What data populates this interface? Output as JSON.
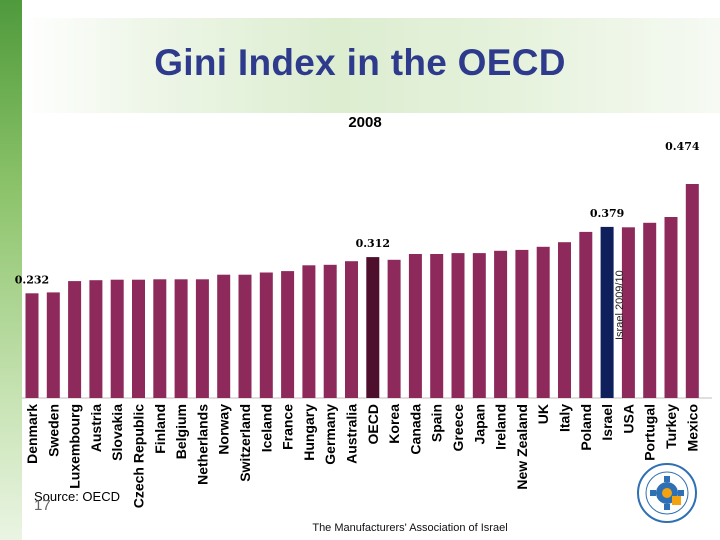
{
  "slide": {
    "title": "Gini Index in the OECD",
    "source": "Source: OECD",
    "slide_number": "17",
    "footer": "The Manufacturers' Association of Israel"
  },
  "colors": {
    "bar": "#8e2a5b",
    "oecd_bar": "#4d0f2c",
    "israel_bar": "#0f1f5c",
    "title": "#2e3a8c"
  },
  "chart_data": {
    "type": "bar",
    "title": "2008",
    "categories": [
      "Denmark",
      "Sweden",
      "Luxembourg",
      "Austria",
      "Slovakia",
      "Czech Republic",
      "Finland",
      "Belgium",
      "Netherlands",
      "Norway",
      "Switzerland",
      "Iceland",
      "France",
      "Hungary",
      "Germany",
      "Australia",
      "OECD",
      "Korea",
      "Canada",
      "Spain",
      "Greece",
      "Japan",
      "Ireland",
      "New Zealand",
      "UK",
      "Italy",
      "Poland",
      "Israel",
      "USA",
      "Portugal",
      "Turkey",
      "Mexico"
    ],
    "values": [
      0.232,
      0.234,
      0.259,
      0.261,
      0.262,
      0.262,
      0.263,
      0.263,
      0.263,
      0.273,
      0.273,
      0.278,
      0.281,
      0.294,
      0.295,
      0.303,
      0.312,
      0.306,
      0.319,
      0.319,
      0.321,
      0.321,
      0.326,
      0.328,
      0.335,
      0.345,
      0.368,
      0.379,
      0.378,
      0.388,
      0.401,
      0.474
    ],
    "data_labels": [
      {
        "category": "Denmark",
        "text": "0.232"
      },
      {
        "category": "OECD",
        "text": "0.312"
      },
      {
        "category": "Israel",
        "text": "0.379"
      },
      {
        "category": "Mexico",
        "text": "0.474"
      }
    ],
    "annotations": [
      {
        "category": "Israel",
        "text": "Israel 2009/10"
      }
    ],
    "highlight": {
      "OECD": "oecd_bar",
      "Israel": "israel_bar"
    },
    "ylim": [
      0,
      0.474
    ],
    "grid": false,
    "legend": "none"
  }
}
